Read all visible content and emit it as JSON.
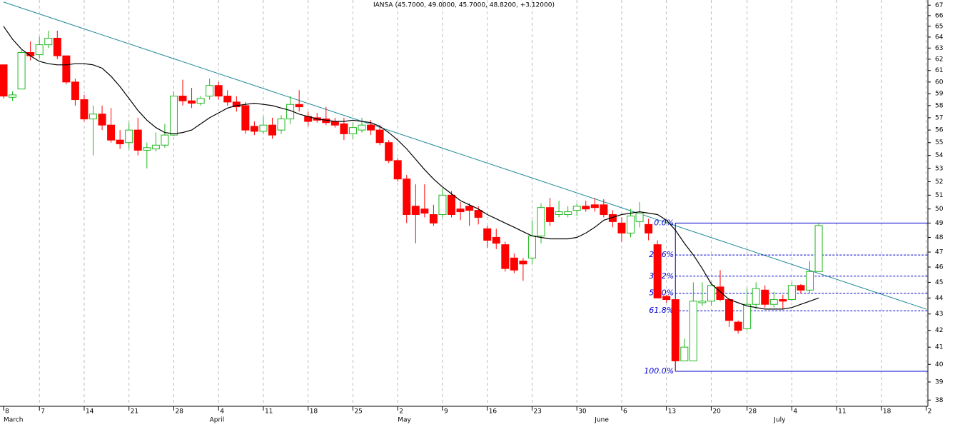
{
  "chart_data": {
    "type": "candlestick",
    "title": "IANSA (45.7000, 49.0000, 45.7000, 48.8200, +3.12000)",
    "categories": [
      "8",
      null,
      null,
      null,
      "7",
      null,
      null,
      null,
      null,
      "14",
      null,
      null,
      null,
      null,
      "21",
      null,
      null,
      null,
      null,
      "28",
      null,
      null,
      null,
      null,
      "4",
      null,
      null,
      null,
      null,
      "11",
      null,
      null,
      null,
      null,
      "18",
      null,
      null,
      null,
      null,
      "25",
      null,
      null,
      null,
      null,
      "2",
      null,
      null,
      null,
      null,
      "9",
      null,
      null,
      null,
      null,
      "16",
      null,
      null,
      null,
      null,
      "23",
      null,
      null,
      null,
      null,
      "30",
      null,
      null,
      null,
      null,
      "6",
      null,
      null,
      null,
      null,
      "13",
      null,
      null,
      null,
      null,
      "20",
      null,
      null,
      null,
      "28",
      null,
      null,
      null,
      null,
      "4",
      null,
      null,
      null,
      null,
      "11",
      null,
      null,
      null,
      null,
      "18",
      null,
      null,
      null,
      null,
      "2"
    ],
    "months": [
      "March",
      null,
      null,
      null,
      null,
      null,
      null,
      null,
      null,
      null,
      null,
      null,
      null,
      null,
      null,
      null,
      null,
      null,
      null,
      null,
      null,
      null,
      null,
      "April",
      null,
      null,
      null,
      null,
      null,
      null,
      null,
      null,
      null,
      null,
      null,
      null,
      null,
      null,
      null,
      null,
      null,
      null,
      null,
      null,
      "May",
      null,
      null,
      null,
      null,
      null,
      null,
      null,
      null,
      null,
      null,
      null,
      null,
      null,
      null,
      null,
      null,
      null,
      null,
      null,
      null,
      null,
      "June",
      null,
      null,
      null,
      null,
      null,
      null,
      null,
      null,
      null,
      null,
      null,
      null,
      null,
      null,
      null,
      null,
      null,
      null,
      null,
      "July",
      null,
      null,
      null,
      null,
      null,
      null,
      null,
      null,
      null,
      null,
      null,
      null,
      null,
      null,
      null,
      null,
      null
    ],
    "open": [
      61.5,
      58.7,
      59.4,
      62.6,
      62.4,
      63.3,
      63.9,
      62.3,
      60,
      58.5,
      56.9,
      57.3,
      56.4,
      55.2,
      55,
      56,
      54.4,
      54.5,
      54.8,
      55.6,
      58.8,
      58.4,
      58.2,
      58.8,
      59.7,
      58.8,
      58.3,
      58,
      56.3,
      55.9,
      56.4,
      56,
      56.9,
      58.1,
      57.1,
      57,
      56.9,
      56.7,
      56.5,
      55.7,
      56,
      56.4,
      56,
      55,
      53.6,
      52.2,
      50.2,
      50,
      49.6,
      49.6,
      51,
      50,
      50.2,
      49.9,
      48.6,
      48,
      47.5,
      46.6,
      46.4,
      46.6,
      48.1,
      50.1,
      49.6,
      49.6,
      49.9,
      50.2,
      50.3,
      50.3,
      49.6,
      49,
      48.3,
      49.1,
      48.9,
      47.5,
      44.1,
      43.9,
      40.2,
      40.2,
      43.7,
      43.8,
      44.7,
      43.9,
      42.5,
      42.1,
      43.6,
      44.5,
      43.6,
      43.9,
      43.9,
      44.8,
      44.5,
      45.7,
      null,
      null,
      null,
      null,
      null,
      null,
      null,
      null,
      null,
      null,
      null,
      null
    ],
    "high": [
      61.5,
      59.2,
      62.8,
      63.6,
      64,
      64.6,
      64.6,
      62.3,
      60.3,
      58.9,
      58,
      58,
      57.8,
      56,
      56.6,
      57,
      55,
      55.8,
      56.5,
      59.2,
      60.2,
      59.5,
      58.8,
      60.3,
      60,
      59.3,
      58.8,
      58.3,
      56.7,
      57.1,
      57,
      57.2,
      58.8,
      59.3,
      57.5,
      57.4,
      57.9,
      57,
      57,
      56.6,
      57,
      56.8,
      56.4,
      55.2,
      53.8,
      52.5,
      51.8,
      51.8,
      50.3,
      51.5,
      51.3,
      50.5,
      50.4,
      50.2,
      48.8,
      48.6,
      47.7,
      46.9,
      46.6,
      49.2,
      50.4,
      50.8,
      50.6,
      50.2,
      50.4,
      50.6,
      50.8,
      50.7,
      49.9,
      49.4,
      50,
      50.5,
      49.3,
      47.8,
      44.2,
      43.9,
      41.5,
      45,
      45,
      45,
      45.8,
      44,
      42.6,
      44.6,
      45,
      44.8,
      44.4,
      44.2,
      45,
      44.9,
      46.4,
      49,
      null,
      null,
      null,
      null,
      null,
      null,
      null,
      null,
      null,
      null,
      null,
      null
    ],
    "low": [
      58.6,
      58.4,
      59.4,
      61.9,
      62.1,
      63,
      62,
      59.8,
      58,
      56.7,
      54,
      56,
      55,
      54.5,
      54.5,
      54,
      53,
      54.3,
      54.6,
      55.5,
      58,
      57.8,
      58,
      58.5,
      58.5,
      58,
      57.5,
      55.7,
      55.6,
      55.7,
      55.3,
      55.7,
      56.5,
      57.5,
      56.3,
      56.6,
      56.4,
      56.2,
      55.2,
      55.3,
      55.8,
      55.6,
      54.8,
      53.4,
      52,
      49,
      47.6,
      49.4,
      48.8,
      49.4,
      49.4,
      49.2,
      48.8,
      48.9,
      47.3,
      47.2,
      45.7,
      45.6,
      45.1,
      46.2,
      47.6,
      48.8,
      49.4,
      49.4,
      49.5,
      49.8,
      49.8,
      49.4,
      48.7,
      47.7,
      48,
      48.7,
      47.8,
      44,
      43.7,
      39.6,
      40.2,
      40.2,
      43.5,
      43.5,
      43.8,
      42.2,
      41.8,
      42,
      43.3,
      43.4,
      43.4,
      43.3,
      43.8,
      44.3,
      44.3,
      45.7,
      null,
      null,
      null,
      null,
      null,
      null,
      null,
      null,
      null,
      null,
      null,
      null
    ],
    "close": [
      58.8,
      58.9,
      62.6,
      62.3,
      63.3,
      63.9,
      62.3,
      60,
      58.5,
      56.9,
      57.3,
      56.4,
      55.2,
      54.9,
      56,
      54.4,
      54.6,
      54.8,
      55.6,
      58.8,
      58.4,
      58.2,
      58.6,
      59.7,
      58.8,
      58.3,
      57.9,
      56,
      55.9,
      56.4,
      55.6,
      56.9,
      58.1,
      57.9,
      56.7,
      56.8,
      56.6,
      56.4,
      55.7,
      56.2,
      56.4,
      56,
      55,
      53.6,
      52.2,
      49.6,
      49.6,
      49.7,
      49,
      51,
      49.6,
      49.8,
      49.9,
      49.4,
      47.8,
      47.6,
      45.9,
      45.8,
      46.2,
      48.1,
      50.1,
      49.1,
      49.8,
      49.8,
      50.2,
      50,
      50.1,
      49.6,
      49.1,
      48.3,
      49.5,
      49.7,
      48.3,
      44,
      43.9,
      40.2,
      41,
      43.8,
      43.8,
      44.8,
      43.9,
      42.6,
      42,
      43.6,
      44.6,
      43.6,
      43.9,
      43.8,
      44.8,
      44.5,
      45.7,
      48.82,
      null,
      null,
      null,
      null,
      null,
      null,
      null,
      null,
      null,
      null,
      null,
      null
    ],
    "up_color": "#22b822",
    "down_color": "#ff0000",
    "ma": {
      "color": "#000000",
      "values": [
        65,
        63.8,
        62.9,
        62.3,
        61.8,
        61.6,
        61.5,
        61.5,
        61.6,
        61.6,
        61.5,
        61.2,
        60.5,
        59.6,
        58.6,
        57.6,
        56.8,
        56.2,
        55.8,
        55.7,
        55.8,
        56,
        56.5,
        57,
        57.4,
        57.8,
        58,
        58.1,
        58.2,
        58.1,
        58,
        57.8,
        57.6,
        57.3,
        57.1,
        56.9,
        56.8,
        56.7,
        56.7,
        56.8,
        56.7,
        56.6,
        56.3,
        55.8,
        55.2,
        54.5,
        53.7,
        52.9,
        52.2,
        51.6,
        51.1,
        50.6,
        50.3,
        50,
        49.6,
        49.3,
        49,
        48.7,
        48.4,
        48.1,
        48,
        47.9,
        47.9,
        47.9,
        48,
        48.3,
        48.7,
        49.2,
        49.4,
        49.6,
        49.7,
        49.8,
        49.7,
        49.6,
        49.2,
        48.5,
        47.6,
        46.8,
        45.9,
        44.9,
        44.4,
        43.9,
        43.7,
        43.5,
        43.4,
        43.3,
        43.3,
        43.3,
        43.4,
        43.6,
        43.8,
        44,
        null,
        null,
        null,
        null,
        null,
        null,
        null,
        null,
        null,
        null,
        null,
        null
      ]
    },
    "trendline": {
      "color": "#1f8a9a",
      "x": [
        0,
        103
      ],
      "values": [
        67.3,
        43.3
      ]
    },
    "fibonacci": {
      "color": "#0000cc",
      "levels": [
        {
          "value": 49.0,
          "label": "0.0%"
        },
        {
          "value": 46.8,
          "label": "23.6%"
        },
        {
          "value": 45.4,
          "label": "38.2%"
        },
        {
          "value": 44.3,
          "label": "50.0%"
        },
        {
          "value": 43.2,
          "label": "61.8%"
        },
        {
          "value": 39.6,
          "label": "100.0%"
        }
      ]
    },
    "log_scale": true,
    "ylim": [
      37.7,
      67.5
    ],
    "yticks": [
      38,
      39,
      40,
      41,
      42,
      43,
      44,
      45,
      46,
      47,
      48,
      49,
      50,
      51,
      52,
      53,
      54,
      55,
      56,
      57,
      58,
      59,
      60,
      61,
      62,
      63,
      64,
      65,
      66,
      67
    ]
  }
}
